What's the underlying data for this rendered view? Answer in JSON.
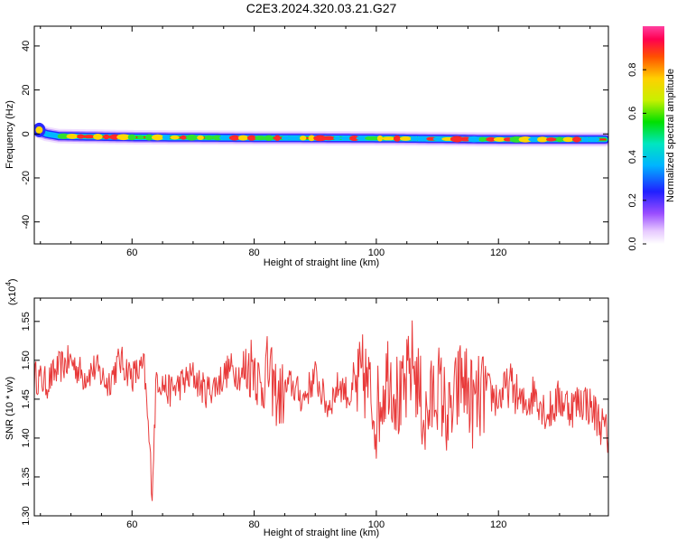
{
  "title": "C2E3.2024.320.03.21.G27",
  "chart_data": [
    {
      "type": "heatmap",
      "xlabel": "Height of straight line (km)",
      "ylabel": "Frequency (Hz)",
      "xlim": [
        44,
        138
      ],
      "ylim": [
        -50,
        49
      ],
      "xticks": [
        60,
        80,
        100,
        120
      ],
      "yticks": [
        -40,
        -20,
        0,
        20,
        40
      ],
      "ridge": [
        [
          44.5,
          1.5
        ],
        [
          46,
          0
        ],
        [
          48,
          -1
        ],
        [
          60,
          -1.5
        ],
        [
          80,
          -1.8
        ],
        [
          100,
          -2
        ],
        [
          120,
          -2.5
        ],
        [
          137,
          -2.5
        ]
      ],
      "colorbar": {
        "label": "Normalized spectral amplitude",
        "range": [
          0,
          1
        ],
        "ticks": [
          0.0,
          0.2,
          0.4,
          0.6,
          0.8
        ]
      }
    },
    {
      "type": "line",
      "xlabel": "Height of straight line (km)",
      "ylabel": "SNR (10 * v/v)",
      "scale_label": "(x10",
      "scale_exp": "4",
      "scale_close": ")",
      "xlim": [
        44,
        138
      ],
      "ylim": [
        1.3,
        1.58
      ],
      "xticks": [
        60,
        80,
        100,
        120
      ],
      "yticks": [
        1.3,
        1.35,
        1.4,
        1.45,
        1.5,
        1.55
      ],
      "line_color": "#e83a3a",
      "x": [
        44,
        46,
        48,
        50,
        52,
        54,
        56,
        58,
        60,
        62,
        63.3,
        64,
        66,
        68,
        70,
        72,
        74,
        76,
        78,
        80,
        81,
        82,
        84,
        86,
        88,
        90,
        92,
        94,
        96,
        98,
        100,
        102,
        104,
        106,
        108,
        110,
        112,
        114,
        116,
        118,
        120,
        122,
        124,
        126,
        128,
        130,
        132,
        134,
        136,
        138
      ],
      "y": [
        1.48,
        1.47,
        1.49,
        1.5,
        1.48,
        1.49,
        1.47,
        1.5,
        1.48,
        1.49,
        1.335,
        1.48,
        1.46,
        1.47,
        1.48,
        1.46,
        1.47,
        1.49,
        1.48,
        1.5,
        1.46,
        1.49,
        1.45,
        1.47,
        1.45,
        1.48,
        1.44,
        1.47,
        1.45,
        1.48,
        1.43,
        1.49,
        1.44,
        1.5,
        1.42,
        1.47,
        1.42,
        1.48,
        1.44,
        1.46,
        1.45,
        1.47,
        1.44,
        1.46,
        1.43,
        1.45,
        1.44,
        1.45,
        1.43,
        1.4
      ]
    }
  ]
}
